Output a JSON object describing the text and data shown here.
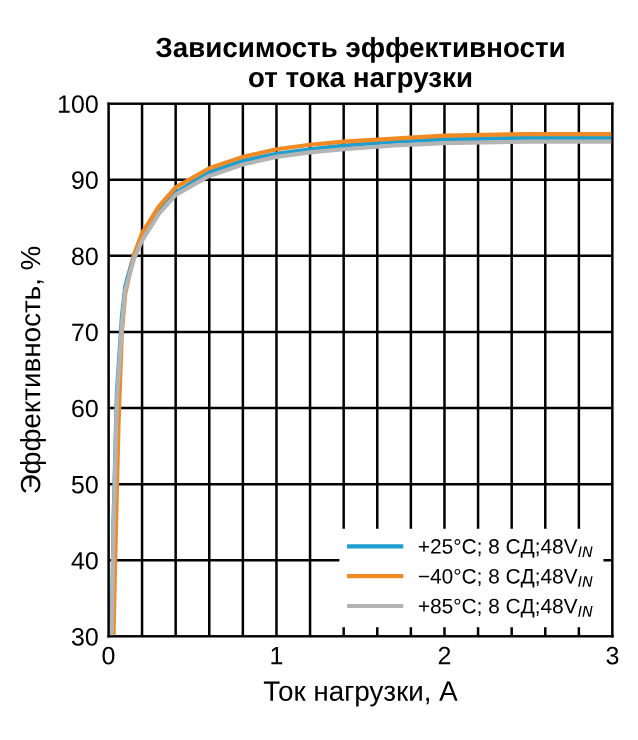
{
  "chart_data": {
    "type": "line",
    "title": "Зависимость эффективности\nот тока нагрузки",
    "xlabel": "Ток нагрузки, А",
    "ylabel": "Эффективность, %",
    "xlim": [
      0,
      3
    ],
    "xticks": [
      0,
      {
        "value": 0.2,
        "label": null
      },
      {
        "value": 0.4,
        "label": null
      },
      {
        "value": 0.6,
        "label": null
      },
      {
        "value": 0.8,
        "label": null
      },
      1,
      {
        "value": 1.2,
        "label": null
      },
      {
        "value": 1.4,
        "label": null
      },
      {
        "value": 1.6,
        "label": null
      },
      {
        "value": 1.8,
        "label": null
      },
      2,
      {
        "value": 2.2,
        "label": null
      },
      {
        "value": 2.4,
        "label": null
      },
      {
        "value": 2.6,
        "label": null
      },
      {
        "value": 2.8,
        "label": null
      },
      3
    ],
    "ylim": [
      30,
      100
    ],
    "yticks": [
      30,
      40,
      50,
      60,
      70,
      80,
      90,
      100
    ],
    "grid": true,
    "legend": "bottom right",
    "marker": "none",
    "line_style": "solid",
    "series": [
      {
        "name": "+25°C; 8 СД;48V$_{IN}$",
        "color": "#1f9fd0",
        "x": [
          0.02,
          0.03,
          0.05,
          0.08,
          0.1,
          0.15,
          0.2,
          0.3,
          0.4,
          0.6,
          0.8,
          1.0,
          1.2,
          1.4,
          1.7,
          2.0,
          2.5,
          3.0
        ],
        "values": [
          30,
          45,
          62,
          72,
          76,
          80,
          82.5,
          86,
          88.3,
          91,
          92.5,
          93.4,
          94,
          94.5,
          95,
          95.3,
          95.5,
          95.5
        ]
      },
      {
        "name": "−40°C; 8 СД;48V$_{IN}$",
        "color": "#f08a24",
        "x": [
          0.03,
          0.04,
          0.06,
          0.08,
          0.1,
          0.15,
          0.2,
          0.3,
          0.4,
          0.6,
          0.8,
          1.0,
          1.2,
          1.4,
          1.7,
          2.0,
          2.5,
          3.0
        ],
        "values": [
          30,
          40,
          58,
          70,
          75,
          80,
          83,
          86.5,
          89,
          91.5,
          93,
          94,
          94.6,
          95,
          95.4,
          95.8,
          96,
          96
        ]
      },
      {
        "name": "+85°C; 8 СД;48V$_{IN}$",
        "color": "#b4b4b4",
        "x": [
          0.02,
          0.03,
          0.05,
          0.08,
          0.1,
          0.15,
          0.2,
          0.3,
          0.4,
          0.6,
          0.8,
          1.0,
          1.2,
          1.4,
          1.7,
          2.0,
          2.5,
          3.0
        ],
        "values": [
          30,
          44,
          61,
          71,
          75.5,
          79.5,
          82,
          85.5,
          88,
          90.5,
          92,
          93,
          93.6,
          94,
          94.5,
          94.8,
          95,
          95
        ]
      }
    ]
  }
}
